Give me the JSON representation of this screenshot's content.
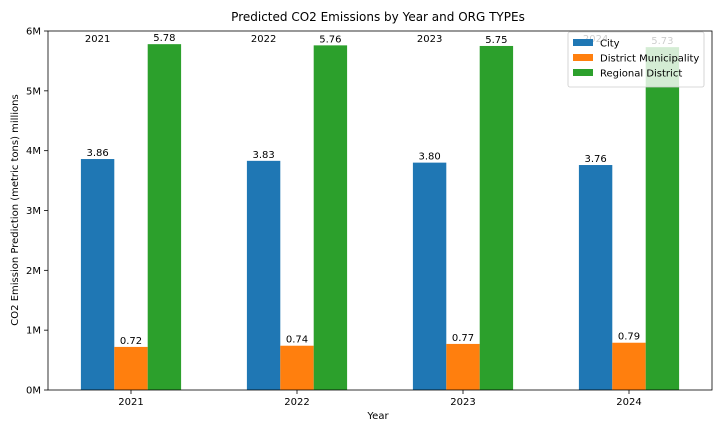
{
  "chart_data": {
    "type": "bar",
    "title": "Predicted CO2 Emissions by Year and ORG TYPEs",
    "xlabel": "Year",
    "ylabel": "CO2 Emission Prediction (metric tons) millions",
    "categories": [
      "2021",
      "2022",
      "2023",
      "2024"
    ],
    "series": [
      {
        "name": "City",
        "color": "#1f77b4",
        "values": [
          3.86,
          3.83,
          3.8,
          3.76
        ],
        "labels": [
          "3.86",
          "3.83",
          "3.80",
          "3.76"
        ]
      },
      {
        "name": "District Municipality",
        "color": "#ff7f0e",
        "values": [
          0.72,
          0.74,
          0.77,
          0.79
        ],
        "labels": [
          "0.72",
          "0.74",
          "0.77",
          "0.79"
        ]
      },
      {
        "name": "Regional District",
        "color": "#2ca02c",
        "values": [
          5.78,
          5.76,
          5.75,
          5.73
        ],
        "labels": [
          "5.78",
          "5.76",
          "5.75",
          "5.73"
        ]
      }
    ],
    "top_year_labels": [
      "2021",
      "2022",
      "2023",
      "2024"
    ],
    "ylim": [
      0,
      6
    ],
    "yticks": [
      0,
      1,
      2,
      3,
      4,
      5,
      6
    ],
    "ytick_labels": [
      "0M",
      "1M",
      "2M",
      "3M",
      "4M",
      "5M",
      "6M"
    ],
    "grid": false,
    "legend_position": "top-right"
  }
}
